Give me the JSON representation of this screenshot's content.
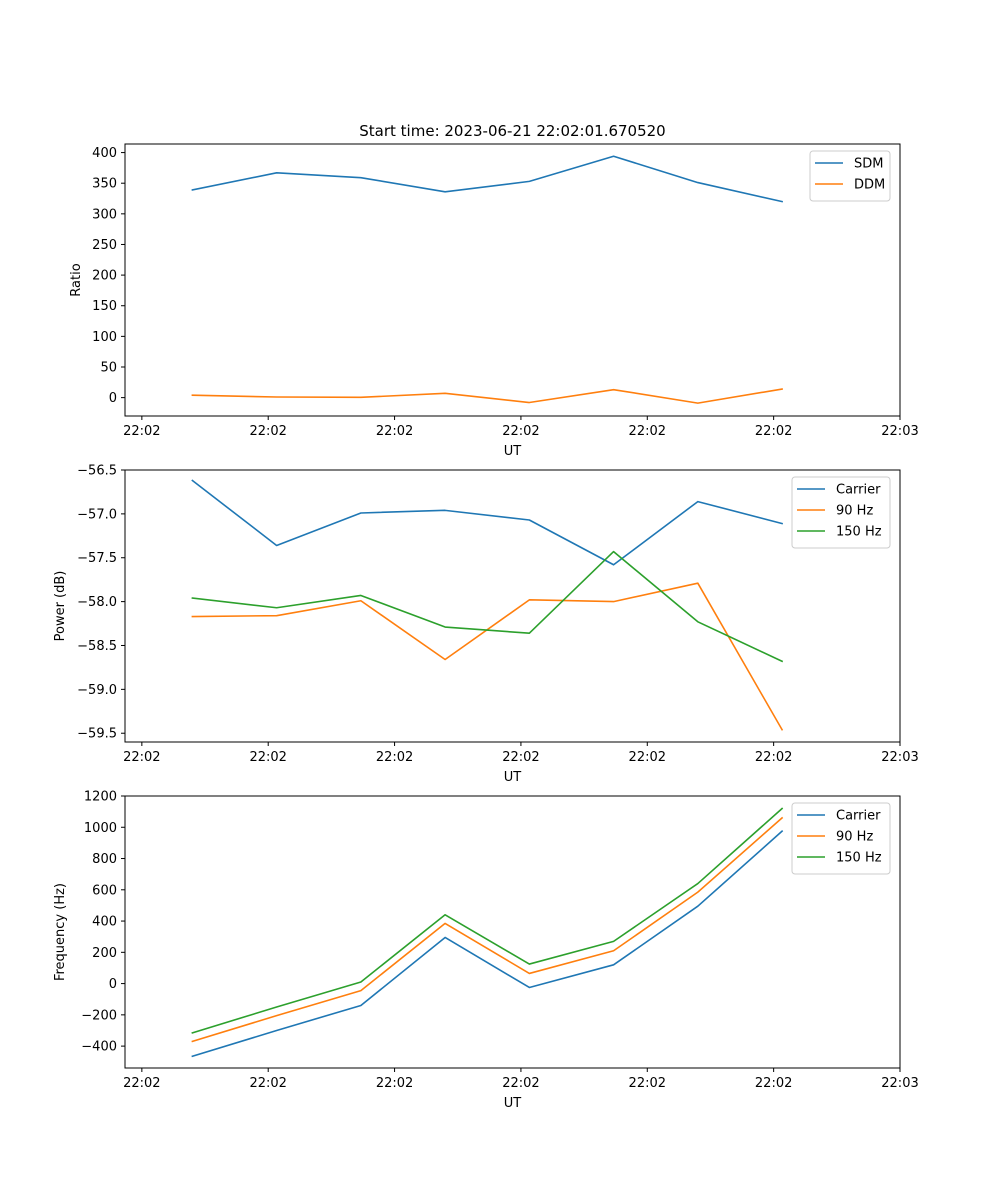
{
  "chart_data": [
    {
      "type": "line",
      "title": "Start time: 2023-06-21 22:02:01.670520",
      "xlabel": "UT",
      "ylabel": "Ratio",
      "x": [
        1,
        2,
        3,
        4,
        5,
        6,
        7,
        8
      ],
      "xlim": [
        0.2,
        9.4
      ],
      "xtick_values": [
        0.4,
        1.9,
        3.4,
        4.9,
        6.4,
        7.9,
        9.4
      ],
      "xtick_labels": [
        "22:02",
        "22:02",
        "22:02",
        "22:02",
        "22:02",
        "22:02",
        "22:03"
      ],
      "ylim": [
        -30,
        414
      ],
      "yticks": [
        0,
        50,
        100,
        150,
        200,
        250,
        300,
        350,
        400
      ],
      "ytick_labels": [
        "0",
        "50",
        "100",
        "150",
        "200",
        "250",
        "300",
        "350",
        "400"
      ],
      "legend": "top-right",
      "grid": false,
      "series": [
        {
          "name": "SDM",
          "color": "#1f77b4",
          "values": [
            339,
            367,
            359,
            336,
            353,
            394,
            351,
            320
          ]
        },
        {
          "name": "DDM",
          "color": "#ff7f0e",
          "values": [
            4,
            1,
            0.5,
            7,
            -8,
            13,
            -9,
            14
          ]
        }
      ]
    },
    {
      "type": "line",
      "title": "",
      "xlabel": "UT",
      "ylabel": "Power (dB)",
      "x": [
        1,
        2,
        3,
        4,
        5,
        6,
        7,
        8
      ],
      "xlim": [
        0.2,
        9.4
      ],
      "xtick_values": [
        0.4,
        1.9,
        3.4,
        4.9,
        6.4,
        7.9,
        9.4
      ],
      "xtick_labels": [
        "22:02",
        "22:02",
        "22:02",
        "22:02",
        "22:02",
        "22:02",
        "22:03"
      ],
      "ylim": [
        -59.6,
        -56.5
      ],
      "yticks": [
        -59.5,
        -59.0,
        -58.5,
        -58.0,
        -57.5,
        -57.0,
        -56.5
      ],
      "ytick_labels": [
        "−59.5",
        "−59.0",
        "−58.5",
        "−58.0",
        "−57.5",
        "−57.0",
        "−56.5"
      ],
      "legend": "top-right",
      "grid": false,
      "series": [
        {
          "name": "Carrier",
          "color": "#1f77b4",
          "values": [
            -56.62,
            -57.36,
            -56.99,
            -56.96,
            -57.07,
            -57.58,
            -56.86,
            -57.11
          ]
        },
        {
          "name": "90 Hz",
          "color": "#ff7f0e",
          "values": [
            -58.17,
            -58.16,
            -57.99,
            -58.66,
            -57.98,
            -58.0,
            -57.79,
            -59.46
          ]
        },
        {
          "name": "150 Hz",
          "color": "#2ca02c",
          "values": [
            -57.96,
            -58.07,
            -57.93,
            -58.29,
            -58.36,
            -57.43,
            -58.23,
            -58.68
          ]
        }
      ]
    },
    {
      "type": "line",
      "title": "",
      "xlabel": "UT",
      "ylabel": "Frequency (Hz)",
      "x": [
        1,
        2,
        3,
        4,
        5,
        6,
        7,
        8
      ],
      "xlim": [
        0.2,
        9.4
      ],
      "xtick_values": [
        0.4,
        1.9,
        3.4,
        4.9,
        6.4,
        7.9,
        9.4
      ],
      "xtick_labels": [
        "22:02",
        "22:02",
        "22:02",
        "22:02",
        "22:02",
        "22:02",
        "22:03"
      ],
      "ylim": [
        -540,
        1200
      ],
      "yticks": [
        -400,
        -200,
        0,
        200,
        400,
        600,
        800,
        1000,
        1200
      ],
      "ytick_labels": [
        "−400",
        "−200",
        "0",
        "200",
        "400",
        "600",
        "800",
        "1000",
        "1200"
      ],
      "legend": "top-right",
      "grid": false,
      "series": [
        {
          "name": "Carrier",
          "color": "#1f77b4",
          "values": [
            -465,
            -300,
            -140,
            295,
            -25,
            120,
            495,
            975
          ]
        },
        {
          "name": "90 Hz",
          "color": "#ff7f0e",
          "values": [
            -370,
            -205,
            -45,
            385,
            65,
            210,
            585,
            1060
          ]
        },
        {
          "name": "150 Hz",
          "color": "#2ca02c",
          "values": [
            -315,
            -150,
            10,
            440,
            125,
            270,
            640,
            1120
          ]
        }
      ]
    }
  ]
}
